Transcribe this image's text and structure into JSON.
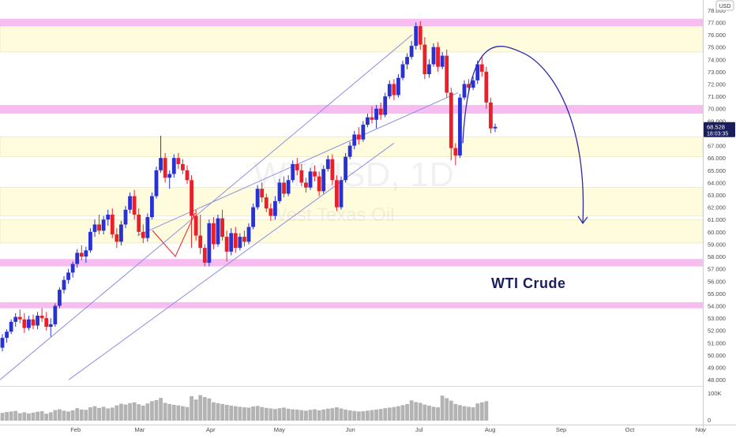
{
  "chart_data": {
    "type": "candlestick",
    "symbol_watermark": "WTIUSD, 1D",
    "description_watermark": "West Texas Oil",
    "annotation": "WTI Crude",
    "currency_label": "USD",
    "last_price": "68.528",
    "countdown": "18:03:35",
    "x_axis": {
      "ticks": [
        {
          "label": "Feb",
          "day": 10
        },
        {
          "label": "Mar",
          "day": 38
        },
        {
          "label": "Apr",
          "day": 69
        },
        {
          "label": "May",
          "day": 99
        },
        {
          "label": "Jun",
          "day": 130
        },
        {
          "label": "Jul",
          "day": 160
        },
        {
          "label": "Aug",
          "day": 191
        },
        {
          "label": "Sep",
          "day": 222
        },
        {
          "label": "Oct",
          "day": 252
        },
        {
          "label": "Nov",
          "day": 283
        }
      ]
    },
    "y_axis": {
      "range": [
        47.5,
        78.5
      ],
      "ticks": [
        "48.000",
        "49.000",
        "50.000",
        "51.000",
        "52.000",
        "53.000",
        "54.000",
        "55.000",
        "56.000",
        "57.000",
        "58.000",
        "59.000",
        "60.000",
        "61.000",
        "62.000",
        "63.000",
        "64.000",
        "65.000",
        "66.000",
        "67.000",
        "68.000",
        "69.000",
        "70.000",
        "71.000",
        "72.000",
        "73.000",
        "74.000",
        "75.000",
        "76.000",
        "77.000",
        "78.000"
      ]
    },
    "volume_axis": {
      "ticks": [
        "100K",
        "0"
      ]
    },
    "resistance_bands_pink": [
      [
        76.7,
        77.3
      ],
      [
        69.6,
        70.3
      ],
      [
        57.2,
        57.8
      ],
      [
        53.8,
        54.3
      ]
    ],
    "zones_yellow": [
      [
        74.6,
        76.7
      ],
      [
        66.1,
        67.7
      ],
      [
        61.3,
        63.6
      ],
      [
        59.1,
        61.0
      ]
    ],
    "channel": {
      "upper": {
        "from": [
          0,
          48.0
        ],
        "to": [
          180,
          76.0
        ]
      },
      "middle": {
        "from": [
          60,
          59.7
        ],
        "to": [
          200,
          71.3
        ]
      },
      "lower": {
        "from": [
          30,
          48.0
        ],
        "to": [
          172,
          67.2
        ]
      }
    },
    "candles": [
      {
        "o": 50.6,
        "h": 51.7,
        "l": 50.3,
        "c": 51.4
      },
      {
        "o": 51.4,
        "h": 52.1,
        "l": 51.0,
        "c": 51.9
      },
      {
        "o": 51.9,
        "h": 52.9,
        "l": 51.7,
        "c": 52.7
      },
      {
        "o": 52.7,
        "h": 53.4,
        "l": 52.3,
        "c": 53.1
      },
      {
        "o": 53.1,
        "h": 53.7,
        "l": 52.6,
        "c": 52.9
      },
      {
        "o": 52.9,
        "h": 53.4,
        "l": 51.8,
        "c": 52.2
      },
      {
        "o": 52.2,
        "h": 53.2,
        "l": 52.0,
        "c": 52.9
      },
      {
        "o": 52.9,
        "h": 53.3,
        "l": 52.1,
        "c": 52.4
      },
      {
        "o": 52.4,
        "h": 53.5,
        "l": 52.1,
        "c": 53.2
      },
      {
        "o": 53.2,
        "h": 53.8,
        "l": 52.7,
        "c": 53.0
      },
      {
        "o": 53.0,
        "h": 53.5,
        "l": 52.0,
        "c": 52.3
      },
      {
        "o": 52.3,
        "h": 53.0,
        "l": 51.5,
        "c": 52.5
      },
      {
        "o": 52.5,
        "h": 54.2,
        "l": 52.3,
        "c": 54.0
      },
      {
        "o": 54.0,
        "h": 55.5,
        "l": 53.8,
        "c": 55.3
      },
      {
        "o": 55.3,
        "h": 56.4,
        "l": 55.0,
        "c": 56.1
      },
      {
        "o": 56.1,
        "h": 57.0,
        "l": 55.8,
        "c": 56.7
      },
      {
        "o": 56.7,
        "h": 57.6,
        "l": 56.3,
        "c": 57.4
      },
      {
        "o": 57.4,
        "h": 58.6,
        "l": 57.1,
        "c": 58.3
      },
      {
        "o": 58.3,
        "h": 58.9,
        "l": 57.7,
        "c": 58.0
      },
      {
        "o": 58.0,
        "h": 58.8,
        "l": 57.5,
        "c": 58.5
      },
      {
        "o": 58.5,
        "h": 60.3,
        "l": 58.3,
        "c": 60.0
      },
      {
        "o": 60.0,
        "h": 61.0,
        "l": 59.6,
        "c": 60.6
      },
      {
        "o": 60.6,
        "h": 61.4,
        "l": 59.8,
        "c": 60.1
      },
      {
        "o": 60.1,
        "h": 61.3,
        "l": 59.8,
        "c": 61.0
      },
      {
        "o": 61.0,
        "h": 61.8,
        "l": 60.5,
        "c": 61.4
      },
      {
        "o": 61.4,
        "h": 61.9,
        "l": 59.5,
        "c": 59.8
      },
      {
        "o": 59.8,
        "h": 60.3,
        "l": 58.7,
        "c": 59.2
      },
      {
        "o": 59.2,
        "h": 60.9,
        "l": 58.9,
        "c": 60.6
      },
      {
        "o": 60.6,
        "h": 62.1,
        "l": 60.3,
        "c": 61.8
      },
      {
        "o": 61.8,
        "h": 63.2,
        "l": 61.5,
        "c": 62.9
      },
      {
        "o": 62.9,
        "h": 63.4,
        "l": 61.0,
        "c": 61.4
      },
      {
        "o": 61.4,
        "h": 61.9,
        "l": 59.7,
        "c": 60.0
      },
      {
        "o": 60.0,
        "h": 60.6,
        "l": 59.1,
        "c": 59.5
      },
      {
        "o": 59.5,
        "h": 61.5,
        "l": 59.2,
        "c": 61.2
      },
      {
        "o": 61.2,
        "h": 63.2,
        "l": 61.0,
        "c": 62.9
      },
      {
        "o": 62.9,
        "h": 65.3,
        "l": 62.7,
        "c": 65.0
      },
      {
        "o": 65.0,
        "h": 67.8,
        "l": 64.8,
        "c": 66.0
      },
      {
        "o": 66.0,
        "h": 66.4,
        "l": 64.0,
        "c": 64.4
      },
      {
        "o": 64.4,
        "h": 65.0,
        "l": 63.5,
        "c": 64.7
      },
      {
        "o": 64.7,
        "h": 66.3,
        "l": 64.4,
        "c": 66.0
      },
      {
        "o": 66.0,
        "h": 66.4,
        "l": 65.1,
        "c": 65.5
      },
      {
        "o": 65.5,
        "h": 65.9,
        "l": 64.7,
        "c": 65.0
      },
      {
        "o": 65.0,
        "h": 65.4,
        "l": 63.9,
        "c": 64.2
      },
      {
        "o": 64.2,
        "h": 64.6,
        "l": 58.7,
        "c": 61.3
      },
      {
        "o": 61.3,
        "h": 61.8,
        "l": 59.3,
        "c": 59.7
      },
      {
        "o": 59.7,
        "h": 61.4,
        "l": 58.2,
        "c": 58.7
      },
      {
        "o": 58.7,
        "h": 59.0,
        "l": 57.2,
        "c": 57.5
      },
      {
        "o": 57.5,
        "h": 61.0,
        "l": 57.2,
        "c": 60.7
      },
      {
        "o": 60.7,
        "h": 61.2,
        "l": 58.6,
        "c": 59.0
      },
      {
        "o": 59.0,
        "h": 61.4,
        "l": 58.8,
        "c": 61.1
      },
      {
        "o": 61.1,
        "h": 61.8,
        "l": 59.3,
        "c": 59.6
      },
      {
        "o": 59.6,
        "h": 60.1,
        "l": 57.6,
        "c": 58.4
      },
      {
        "o": 58.4,
        "h": 60.3,
        "l": 58.1,
        "c": 59.9
      },
      {
        "o": 59.9,
        "h": 60.4,
        "l": 58.3,
        "c": 58.7
      },
      {
        "o": 58.7,
        "h": 59.9,
        "l": 58.5,
        "c": 59.6
      },
      {
        "o": 59.6,
        "h": 60.1,
        "l": 58.8,
        "c": 59.2
      },
      {
        "o": 59.2,
        "h": 60.7,
        "l": 59.0,
        "c": 60.4
      },
      {
        "o": 60.4,
        "h": 62.3,
        "l": 60.2,
        "c": 62.0
      },
      {
        "o": 62.0,
        "h": 63.8,
        "l": 61.8,
        "c": 63.5
      },
      {
        "o": 63.5,
        "h": 64.0,
        "l": 62.4,
        "c": 62.8
      },
      {
        "o": 62.8,
        "h": 63.1,
        "l": 61.6,
        "c": 61.9
      },
      {
        "o": 61.9,
        "h": 62.3,
        "l": 60.9,
        "c": 61.3
      },
      {
        "o": 61.3,
        "h": 62.9,
        "l": 61.0,
        "c": 62.5
      },
      {
        "o": 62.5,
        "h": 64.3,
        "l": 62.3,
        "c": 64.0
      },
      {
        "o": 64.0,
        "h": 64.5,
        "l": 62.8,
        "c": 63.1
      },
      {
        "o": 63.1,
        "h": 64.6,
        "l": 62.9,
        "c": 64.2
      },
      {
        "o": 64.2,
        "h": 65.8,
        "l": 64.0,
        "c": 65.5
      },
      {
        "o": 65.5,
        "h": 66.0,
        "l": 64.6,
        "c": 65.0
      },
      {
        "o": 65.0,
        "h": 65.5,
        "l": 63.7,
        "c": 64.0
      },
      {
        "o": 64.0,
        "h": 64.4,
        "l": 63.2,
        "c": 63.6
      },
      {
        "o": 63.6,
        "h": 65.2,
        "l": 63.4,
        "c": 64.9
      },
      {
        "o": 64.9,
        "h": 65.4,
        "l": 64.1,
        "c": 64.5
      },
      {
        "o": 64.5,
        "h": 64.9,
        "l": 62.9,
        "c": 63.3
      },
      {
        "o": 63.3,
        "h": 65.4,
        "l": 63.1,
        "c": 65.1
      },
      {
        "o": 65.1,
        "h": 66.2,
        "l": 64.9,
        "c": 65.9
      },
      {
        "o": 65.9,
        "h": 66.3,
        "l": 63.8,
        "c": 64.2
      },
      {
        "o": 64.2,
        "h": 64.6,
        "l": 61.7,
        "c": 62.0
      },
      {
        "o": 62.0,
        "h": 64.5,
        "l": 61.8,
        "c": 64.2
      },
      {
        "o": 64.2,
        "h": 66.4,
        "l": 64.0,
        "c": 66.1
      },
      {
        "o": 66.1,
        "h": 67.3,
        "l": 65.9,
        "c": 67.0
      },
      {
        "o": 67.0,
        "h": 68.2,
        "l": 66.7,
        "c": 67.9
      },
      {
        "o": 67.9,
        "h": 68.5,
        "l": 67.1,
        "c": 67.5
      },
      {
        "o": 67.5,
        "h": 69.0,
        "l": 67.3,
        "c": 68.7
      },
      {
        "o": 68.7,
        "h": 69.6,
        "l": 68.5,
        "c": 69.3
      },
      {
        "o": 69.3,
        "h": 70.2,
        "l": 68.8,
        "c": 69.1
      },
      {
        "o": 69.1,
        "h": 70.3,
        "l": 68.4,
        "c": 70.0
      },
      {
        "o": 70.0,
        "h": 70.5,
        "l": 69.1,
        "c": 69.5
      },
      {
        "o": 69.5,
        "h": 71.3,
        "l": 69.3,
        "c": 71.0
      },
      {
        "o": 71.0,
        "h": 72.3,
        "l": 70.8,
        "c": 72.0
      },
      {
        "o": 72.0,
        "h": 72.4,
        "l": 70.7,
        "c": 71.1
      },
      {
        "o": 71.1,
        "h": 72.8,
        "l": 70.9,
        "c": 72.5
      },
      {
        "o": 72.5,
        "h": 73.9,
        "l": 72.3,
        "c": 73.6
      },
      {
        "o": 73.6,
        "h": 74.5,
        "l": 73.2,
        "c": 74.2
      },
      {
        "o": 74.2,
        "h": 75.5,
        "l": 74.0,
        "c": 75.1
      },
      {
        "o": 75.1,
        "h": 77.0,
        "l": 74.8,
        "c": 76.7
      },
      {
        "o": 76.7,
        "h": 77.1,
        "l": 74.8,
        "c": 75.2
      },
      {
        "o": 75.2,
        "h": 75.8,
        "l": 72.4,
        "c": 72.8
      },
      {
        "o": 72.8,
        "h": 74.0,
        "l": 72.5,
        "c": 73.6
      },
      {
        "o": 73.6,
        "h": 75.3,
        "l": 73.4,
        "c": 75.0
      },
      {
        "o": 75.0,
        "h": 75.4,
        "l": 73.0,
        "c": 73.4
      },
      {
        "o": 73.4,
        "h": 74.6,
        "l": 73.2,
        "c": 74.3
      },
      {
        "o": 74.3,
        "h": 74.8,
        "l": 70.9,
        "c": 71.3
      },
      {
        "o": 71.3,
        "h": 71.7,
        "l": 65.8,
        "c": 66.8
      },
      {
        "o": 66.8,
        "h": 67.2,
        "l": 65.4,
        "c": 66.2
      },
      {
        "o": 66.2,
        "h": 71.2,
        "l": 66.0,
        "c": 70.9
      },
      {
        "o": 70.9,
        "h": 72.3,
        "l": 70.7,
        "c": 72.0
      },
      {
        "o": 72.0,
        "h": 72.4,
        "l": 71.3,
        "c": 71.7
      },
      {
        "o": 71.7,
        "h": 72.6,
        "l": 71.5,
        "c": 72.3
      },
      {
        "o": 72.3,
        "h": 73.9,
        "l": 72.0,
        "c": 73.6
      },
      {
        "o": 73.6,
        "h": 74.3,
        "l": 72.6,
        "c": 73.0
      },
      {
        "o": 73.0,
        "h": 73.4,
        "l": 70.0,
        "c": 70.5
      },
      {
        "o": 70.5,
        "h": 70.9,
        "l": 68.0,
        "c": 68.4
      },
      {
        "o": 68.4,
        "h": 68.8,
        "l": 68.1,
        "c": 68.528
      }
    ],
    "volumes": [
      28,
      31,
      33,
      35,
      27,
      30,
      26,
      29,
      32,
      34,
      25,
      30,
      38,
      41,
      36,
      33,
      37,
      45,
      40,
      39,
      48,
      52,
      46,
      50,
      44,
      47,
      55,
      61,
      58,
      63,
      66,
      59,
      54,
      62,
      70,
      74,
      82,
      64,
      60,
      57,
      55,
      52,
      49,
      88,
      76,
      92,
      85,
      80,
      66,
      63,
      60,
      57,
      54,
      52,
      50,
      48,
      47,
      51,
      53,
      49,
      46,
      44,
      42,
      45,
      47,
      43,
      41,
      40,
      38,
      36,
      39,
      41,
      37,
      40,
      43,
      45,
      48,
      44,
      40,
      37,
      35,
      33,
      34,
      36,
      38,
      40,
      42,
      45,
      47,
      49,
      52,
      56,
      60,
      73,
      67,
      64,
      58,
      54,
      50,
      48,
      90,
      81,
      72,
      60,
      56,
      52,
      50,
      48,
      62,
      66,
      70
    ],
    "volume_max_k": 100,
    "forecast": {
      "start": [
        172,
        67.2
      ],
      "peak": [
        194,
        74.5
      ],
      "end": [
        212,
        60.7
      ]
    },
    "colors": {
      "up": "#2832d2",
      "down": "#e8202a",
      "volume": "#b3b3b3",
      "pink_band": "#f7bdf1",
      "yellow_zone": "#fefcdc",
      "channel": "#8c8fe0",
      "forecast": "#2b2ba6",
      "price_label_bg": "#1b1e5c",
      "annotation": "#1b1e5c",
      "red_marker": "#e8202a"
    }
  }
}
